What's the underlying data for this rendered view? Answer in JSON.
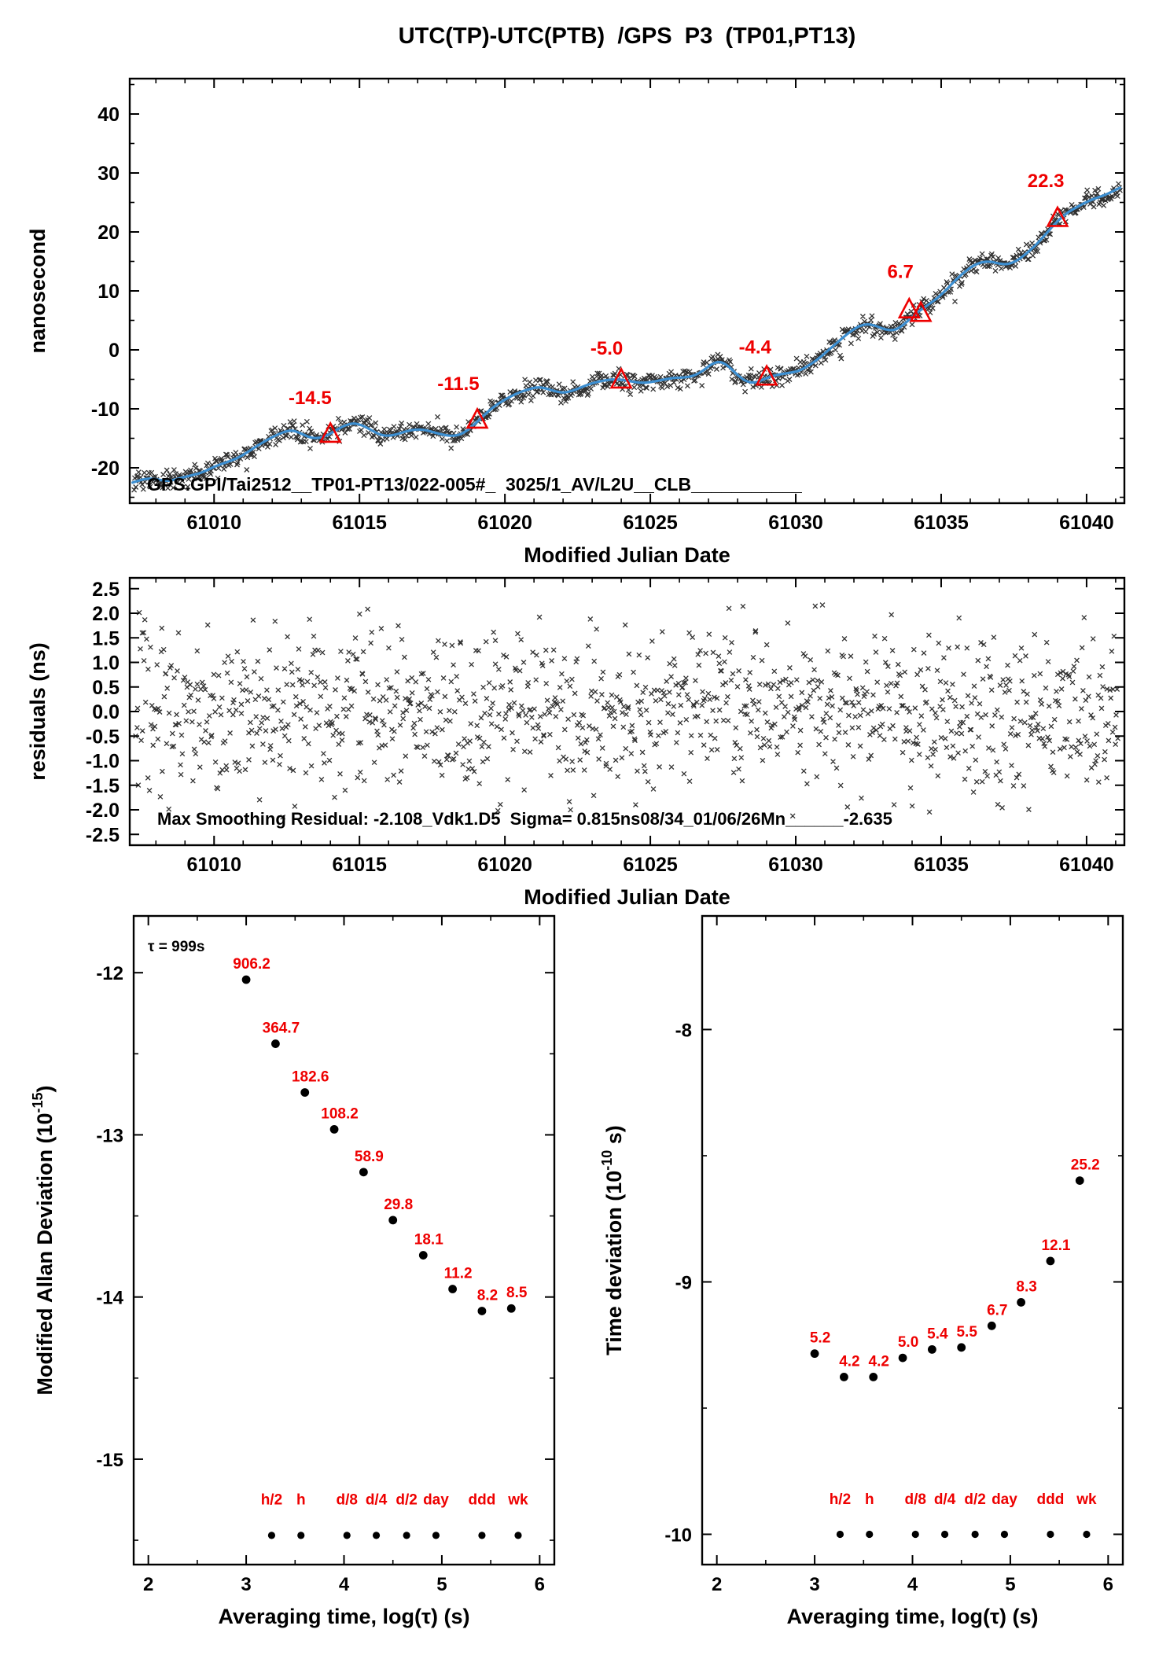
{
  "page": {
    "title": "UTC(TP)-UTC(PTB)  /GPS  P3  (TP01,PT13)",
    "colors": {
      "red": "#ee0000",
      "blue": "#3d8fd1",
      "black": "#000000",
      "background": "#ffffff"
    }
  },
  "chart_data": [
    {
      "id": "phase",
      "type": "scatter",
      "xlabel": "Modified Julian Date",
      "ylabel": "nanosecond",
      "xlim": [
        61007.1,
        61041.3
      ],
      "ylim": [
        -26,
        46
      ],
      "xticks": [
        61010,
        61015,
        61020,
        61025,
        61030,
        61035,
        61040
      ],
      "yticks": [
        -20,
        -10,
        0,
        10,
        20,
        30,
        40
      ],
      "x_minor_step": 1,
      "y_minor_step": 5,
      "header_label": "GPS.GPI/Tai2512__TP01-PT13/022-005#_  3025/1_AV/L2U__CLB___________",
      "noise_sigma_ns": 0.8,
      "points_per_day": 32,
      "seed": 1234567,
      "smoothed_line": [
        [
          61007.2,
          -22.5
        ],
        [
          61007.6,
          -21.8
        ],
        [
          61008.0,
          -21.9
        ],
        [
          61008.4,
          -22.3
        ],
        [
          61008.8,
          -21.8
        ],
        [
          61009.2,
          -21.3
        ],
        [
          61009.6,
          -20.8
        ],
        [
          61010.0,
          -19.8
        ],
        [
          61010.4,
          -19.1
        ],
        [
          61010.8,
          -18.4
        ],
        [
          61011.2,
          -17.2
        ],
        [
          61011.6,
          -15.9
        ],
        [
          61012.0,
          -14.8
        ],
        [
          61012.4,
          -13.9
        ],
        [
          61012.7,
          -13.6
        ],
        [
          61013.0,
          -14.2
        ],
        [
          61013.3,
          -14.9
        ],
        [
          61013.6,
          -15.0
        ],
        [
          61013.9,
          -14.5
        ],
        [
          61014.2,
          -13.6
        ],
        [
          61014.5,
          -12.8
        ],
        [
          61014.8,
          -12.4
        ],
        [
          61015.1,
          -12.8
        ],
        [
          61015.4,
          -13.6
        ],
        [
          61015.7,
          -14.4
        ],
        [
          61016.0,
          -14.6
        ],
        [
          61016.3,
          -14.3
        ],
        [
          61016.6,
          -13.8
        ],
        [
          61016.9,
          -13.5
        ],
        [
          61017.2,
          -13.5
        ],
        [
          61017.5,
          -13.9
        ],
        [
          61017.8,
          -14.3
        ],
        [
          61018.1,
          -14.6
        ],
        [
          61018.4,
          -14.5
        ],
        [
          61018.7,
          -13.7
        ],
        [
          61019.0,
          -12.4
        ],
        [
          61019.3,
          -11.0
        ],
        [
          61019.6,
          -9.7
        ],
        [
          61019.9,
          -8.7
        ],
        [
          61020.2,
          -7.9
        ],
        [
          61020.5,
          -7.2
        ],
        [
          61020.8,
          -6.7
        ],
        [
          61021.1,
          -6.3
        ],
        [
          61021.4,
          -6.5
        ],
        [
          61021.7,
          -7.0
        ],
        [
          61022.0,
          -7.3
        ],
        [
          61022.3,
          -7.0
        ],
        [
          61022.6,
          -6.4
        ],
        [
          61022.9,
          -5.8
        ],
        [
          61023.2,
          -5.4
        ],
        [
          61023.5,
          -5.1
        ],
        [
          61023.8,
          -5.0
        ],
        [
          61024.1,
          -5.1
        ],
        [
          61024.4,
          -5.4
        ],
        [
          61024.7,
          -5.6
        ],
        [
          61025.0,
          -5.5
        ],
        [
          61025.3,
          -5.2
        ],
        [
          61025.6,
          -4.9
        ],
        [
          61025.9,
          -4.7
        ],
        [
          61026.2,
          -4.7
        ],
        [
          61026.5,
          -4.4
        ],
        [
          61026.8,
          -3.6
        ],
        [
          61027.1,
          -2.4
        ],
        [
          61027.4,
          -1.9
        ],
        [
          61027.7,
          -2.8
        ],
        [
          61028.0,
          -4.3
        ],
        [
          61028.3,
          -5.4
        ],
        [
          61028.6,
          -5.6
        ],
        [
          61028.9,
          -5.0
        ],
        [
          61029.2,
          -4.4
        ],
        [
          61029.5,
          -4.1
        ],
        [
          61029.8,
          -3.9
        ],
        [
          61030.1,
          -3.6
        ],
        [
          61030.4,
          -2.8
        ],
        [
          61030.7,
          -1.8
        ],
        [
          61031.0,
          -0.6
        ],
        [
          61031.3,
          0.7
        ],
        [
          61031.6,
          2.0
        ],
        [
          61031.9,
          3.2
        ],
        [
          61032.2,
          4.1
        ],
        [
          61032.5,
          4.4
        ],
        [
          61032.8,
          4.0
        ],
        [
          61033.1,
          3.4
        ],
        [
          61033.4,
          3.3
        ],
        [
          61033.7,
          4.2
        ],
        [
          61034.0,
          5.6
        ],
        [
          61034.3,
          6.8
        ],
        [
          61034.6,
          7.8
        ],
        [
          61034.9,
          8.9
        ],
        [
          61035.2,
          10.3
        ],
        [
          61035.5,
          11.9
        ],
        [
          61035.8,
          13.2
        ],
        [
          61036.1,
          14.3
        ],
        [
          61036.4,
          14.9
        ],
        [
          61036.7,
          15.0
        ],
        [
          61037.0,
          14.6
        ],
        [
          61037.3,
          14.5
        ],
        [
          61037.6,
          15.1
        ],
        [
          61037.9,
          16.2
        ],
        [
          61038.2,
          17.5
        ],
        [
          61038.5,
          19.1
        ],
        [
          61038.8,
          20.8
        ],
        [
          61039.1,
          22.3
        ],
        [
          61039.4,
          23.5
        ],
        [
          61039.7,
          24.3
        ],
        [
          61040.0,
          25.1
        ],
        [
          61040.3,
          25.7
        ],
        [
          61040.6,
          26.2
        ],
        [
          61040.9,
          26.9
        ],
        [
          61041.15,
          27.5
        ]
      ],
      "annotations": {
        "triangles": [
          [
            61014.0,
            -14.2
          ],
          [
            61019.05,
            -11.8
          ],
          [
            61024.0,
            -5.0
          ],
          [
            61029.0,
            -4.5
          ],
          [
            61033.9,
            6.9
          ],
          [
            61034.3,
            6.3
          ],
          [
            61039.0,
            22.4
          ]
        ],
        "labels": [
          {
            "text": "-14.5",
            "x": 61013.3,
            "y": -9.2
          },
          {
            "text": "-11.5",
            "x": 61018.4,
            "y": -6.8
          },
          {
            "text": "-5.0",
            "x": 61023.5,
            "y": -0.8
          },
          {
            "text": "-4.4",
            "x": 61028.6,
            "y": -0.6
          },
          {
            "text": "6.7",
            "x": 61033.6,
            "y": 12.2
          },
          {
            "text": "22.3",
            "x": 61038.6,
            "y": 27.6
          }
        ]
      }
    },
    {
      "id": "residuals",
      "type": "scatter",
      "xlabel": "Modified Julian Date",
      "ylabel": "residuals (ns)",
      "xlim": [
        61007.1,
        61041.3
      ],
      "ylim": [
        -2.72,
        2.72
      ],
      "xticks": [
        61010,
        61015,
        61020,
        61025,
        61030,
        61035,
        61040
      ],
      "yticks": [
        2.5,
        2,
        1.5,
        1,
        0.5,
        0,
        -0.5,
        -1,
        -1.5,
        -2,
        -2.5
      ],
      "ytick_labels": [
        "2.5",
        "2.0",
        "1.5",
        "1.0",
        "0.5",
        "0.0",
        "-0.5",
        "-1.0",
        "-1.5",
        "-2.0",
        "-2.5"
      ],
      "x_minor_step": 1,
      "stats_label": "Max Smoothing Residual: -2.108_Vdk1.D5  Sigma= 0.815ns08/34_01/06/26Mn______-2.635",
      "sigma_ns": 0.82,
      "n_points": 1180,
      "max_abs_ns": 2.2,
      "seed": 97531
    },
    {
      "id": "mdev",
      "type": "scatter",
      "xlabel": "Averaging time, log(τ) (s)",
      "ylabel_parts": {
        "base": "Modified Allan Deviation (10",
        "sup": "-15",
        "close": ")"
      },
      "xlim": [
        1.85,
        6.15
      ],
      "ylim": [
        -15.65,
        -11.65
      ],
      "xticks": [
        2,
        3,
        4,
        5,
        6
      ],
      "yticks": [
        -12,
        -13,
        -14,
        -15
      ],
      "x_minor_step": 0.5,
      "y_minor_step": 0.5,
      "tau_note": "τ = 999s",
      "log_tau": [
        3.0,
        3.3,
        3.6,
        3.9,
        4.2,
        4.5,
        4.81,
        5.11,
        5.41,
        5.71
      ],
      "values": [
        "906.2",
        "364.7",
        "182.6",
        "108.2",
        "58.9",
        "29.8",
        "18.1",
        "11.2",
        "8.2",
        "8.5"
      ],
      "unit_exponent": -15,
      "marker_row": {
        "y": -15.47,
        "label_y": -15.28,
        "items": [
          {
            "label": "h/2",
            "x": 3.26
          },
          {
            "label": "h",
            "x": 3.56
          },
          {
            "label": "d/8",
            "x": 4.03
          },
          {
            "label": "d/4",
            "x": 4.33
          },
          {
            "label": "d/2",
            "x": 4.64
          },
          {
            "label": "day",
            "x": 4.94
          },
          {
            "label": "ddd",
            "x": 5.41
          },
          {
            "label": "wk",
            "x": 5.78
          }
        ]
      }
    },
    {
      "id": "tdev",
      "type": "scatter",
      "xlabel": "Averaging time, log(τ) (s)",
      "ylabel_parts": {
        "base": "Time deviation (10",
        "sup": "-10",
        "close": " s)"
      },
      "xlim": [
        1.85,
        6.15
      ],
      "ylim": [
        -10.12,
        -7.55
      ],
      "xticks": [
        2,
        3,
        4,
        5,
        6
      ],
      "yticks": [
        -8,
        -9,
        -10
      ],
      "x_minor_step": 0.5,
      "y_minor_step": 0.5,
      "log_tau": [
        3.0,
        3.3,
        3.6,
        3.9,
        4.2,
        4.5,
        4.81,
        5.11,
        5.41,
        5.71
      ],
      "values": [
        "5.2",
        "4.2",
        "4.2",
        "5.0",
        "5.4",
        "5.5",
        "6.7",
        "8.3",
        "12.1",
        "25.2"
      ],
      "unit_exponent": -10,
      "marker_row": {
        "y": -10.0,
        "label_y": -9.88,
        "items": [
          {
            "label": "h/2",
            "x": 3.26
          },
          {
            "label": "h",
            "x": 3.56
          },
          {
            "label": "d/8",
            "x": 4.03
          },
          {
            "label": "d/4",
            "x": 4.33
          },
          {
            "label": "d/2",
            "x": 4.64
          },
          {
            "label": "day",
            "x": 4.94
          },
          {
            "label": "ddd",
            "x": 5.41
          },
          {
            "label": "wk",
            "x": 5.78
          }
        ]
      }
    }
  ]
}
